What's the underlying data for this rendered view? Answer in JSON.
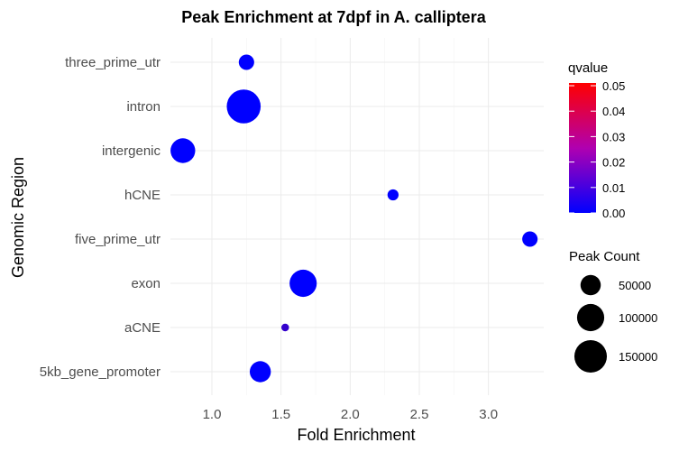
{
  "chart_data": {
    "type": "scatter",
    "title": "Peak Enrichment at 7dpf in A. calliptera",
    "xlabel": "Fold Enrichment",
    "ylabel": "Genomic Region",
    "xlim": [
      0.7,
      3.4
    ],
    "x_ticks": [
      1.0,
      1.5,
      2.0,
      2.5,
      3.0
    ],
    "x_tick_labels": [
      "1.0",
      "1.5",
      "2.0",
      "2.5",
      "3.0"
    ],
    "categories": [
      "5kb_gene_promoter",
      "aCNE",
      "exon",
      "five_prime_utr",
      "hCNE",
      "intergenic",
      "intron",
      "three_prime_utr"
    ],
    "points": [
      {
        "category": "three_prime_utr",
        "x": 1.25,
        "peak_count": 25000,
        "qvalue": 0.0
      },
      {
        "category": "intron",
        "x": 1.23,
        "peak_count": 165000,
        "qvalue": 0.0
      },
      {
        "category": "intergenic",
        "x": 0.79,
        "peak_count": 80000,
        "qvalue": 0.0
      },
      {
        "category": "hCNE",
        "x": 2.31,
        "peak_count": 10000,
        "qvalue": 0.0
      },
      {
        "category": "five_prime_utr",
        "x": 3.3,
        "peak_count": 25000,
        "qvalue": 0.0
      },
      {
        "category": "exon",
        "x": 1.66,
        "peak_count": 100000,
        "qvalue": 0.0
      },
      {
        "category": "aCNE",
        "x": 1.53,
        "peak_count": 3000,
        "qvalue": 0.01
      },
      {
        "category": "5kb_gene_promoter",
        "x": 1.35,
        "peak_count": 55000,
        "qvalue": 0.0
      }
    ],
    "color_legend": {
      "title": "qvalue",
      "min": 0.0,
      "max": 0.05,
      "ticks": [
        "0.00",
        "0.01",
        "0.02",
        "0.03",
        "0.04",
        "0.05"
      ],
      "low_color": "#0000ff",
      "high_color": "#ff0000"
    },
    "size_legend": {
      "title": "Peak Count",
      "values": [
        50000,
        100000,
        150000
      ],
      "labels": [
        "50000",
        "100000",
        "150000"
      ]
    },
    "grid": true,
    "legend_position": "right"
  }
}
